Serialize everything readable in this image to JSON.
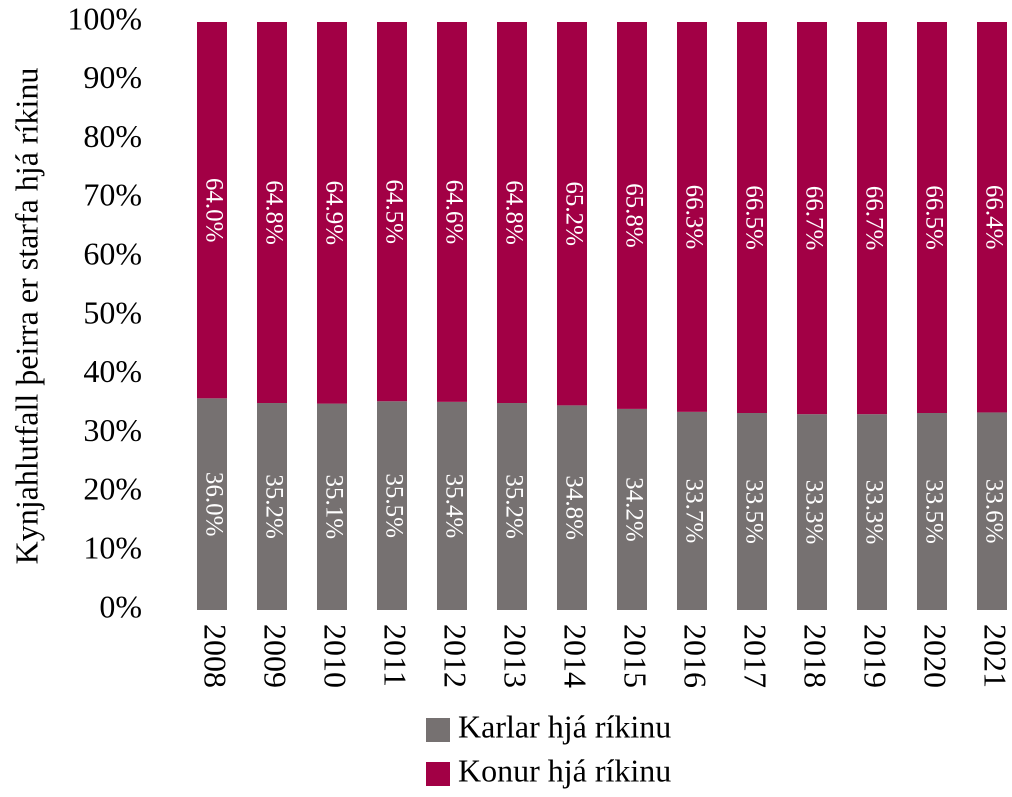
{
  "chart_data": {
    "type": "stacked_bar",
    "y_axis_label": "Kynjahlutfall þeirra er starfa hjá ríkinu",
    "categories": [
      "2008",
      "2009",
      "2010",
      "2011",
      "2012",
      "2013",
      "2014",
      "2015",
      "2016",
      "2017",
      "2018",
      "2019",
      "2020",
      "2021"
    ],
    "series": [
      {
        "name": "Karlar hjá ríkinu",
        "color": "#767171",
        "values": [
          36.0,
          35.2,
          35.1,
          35.5,
          35.4,
          35.2,
          34.8,
          34.2,
          33.7,
          33.5,
          33.3,
          33.3,
          33.5,
          33.6
        ],
        "value_labels": [
          "36.0%",
          "35.2%",
          "35.1%",
          "35.5%",
          "35.4%",
          "35.2%",
          "34.8%",
          "34.2%",
          "33.7%",
          "33.5%",
          "33.3%",
          "33.3%",
          "33.5%",
          "33.6%"
        ]
      },
      {
        "name": "Konur hjá ríkinu",
        "color": "#a20045",
        "values": [
          64.0,
          64.8,
          64.9,
          64.5,
          64.6,
          64.8,
          65.2,
          65.8,
          66.3,
          66.5,
          66.7,
          66.7,
          66.5,
          66.4
        ],
        "value_labels": [
          "64.0%",
          "64.8%",
          "64.9%",
          "64.5%",
          "64.6%",
          "64.8%",
          "65.2%",
          "65.8%",
          "66.3%",
          "66.5%",
          "66.7%",
          "66.7%",
          "66.5%",
          "66.4%"
        ]
      }
    ],
    "ylim": [
      0,
      100
    ],
    "yticks": [
      {
        "value": 0,
        "label": "0%"
      },
      {
        "value": 10,
        "label": "10%"
      },
      {
        "value": 20,
        "label": "20%"
      },
      {
        "value": 30,
        "label": "30%"
      },
      {
        "value": 40,
        "label": "40%"
      },
      {
        "value": 50,
        "label": "50%"
      },
      {
        "value": 60,
        "label": "60%"
      },
      {
        "value": 70,
        "label": "70%"
      },
      {
        "value": 80,
        "label": "80%"
      },
      {
        "value": 90,
        "label": "90%"
      },
      {
        "value": 100,
        "label": "100%"
      }
    ],
    "legend": "bottom"
  }
}
